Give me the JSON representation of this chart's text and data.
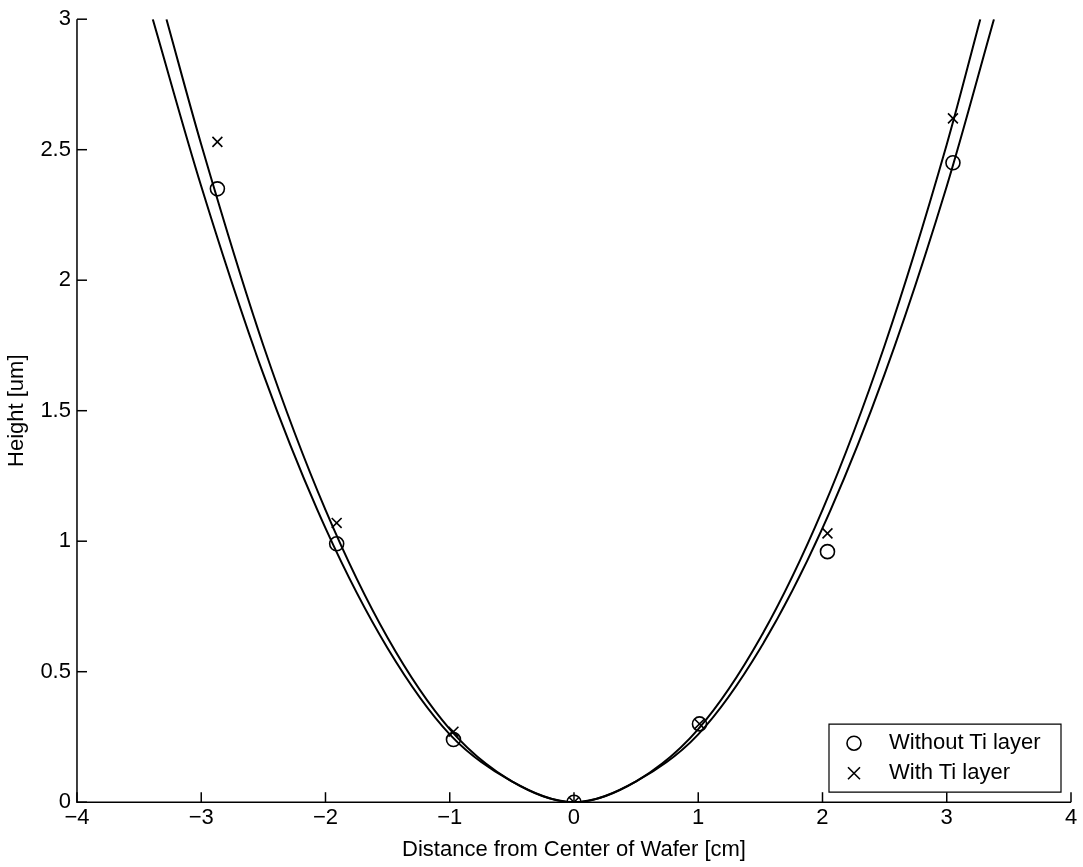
{
  "chart_data": {
    "type": "scatter",
    "xlabel": "Distance from Center of Wafer [cm]",
    "ylabel": "Height [um]",
    "xlim": [
      -4,
      4
    ],
    "ylim": [
      0,
      3
    ],
    "xticks": [
      -4,
      -3,
      -2,
      -1,
      0,
      1,
      2,
      3,
      4
    ],
    "yticks": [
      0,
      0.5,
      1,
      1.5,
      2,
      2.5,
      3
    ],
    "grid": false,
    "legend": "bottom right",
    "series": [
      {
        "name": "Without Ti layer",
        "color": "#000000",
        "marker": "circle",
        "x": [
          -2.87,
          -1.91,
          -0.97,
          0,
          1.01,
          2.04,
          3.05
        ],
        "values": [
          2.35,
          0.99,
          0.24,
          0,
          0.3,
          0.96,
          2.45
        ]
      },
      {
        "name": "With Ti layer",
        "color": "#000000",
        "marker": "cross",
        "x": [
          -2.87,
          -1.91,
          -0.97,
          0,
          1.01,
          2.04,
          3.05
        ],
        "values": [
          2.53,
          1.07,
          0.27,
          0,
          0.3,
          1.03,
          2.62
        ]
      },
      {
        "type": "line",
        "color": "#000000",
        "marker": "none",
        "x": [
          -3.39,
          -3,
          -2.5,
          -2,
          -1.5,
          -1,
          -0.5,
          0,
          0.5,
          1,
          1.5,
          2,
          2.5,
          3,
          3.38
        ],
        "values": [
          3,
          2.36,
          1.64,
          1.05,
          0.59,
          0.26,
          0.08,
          0,
          0.08,
          0.26,
          0.59,
          1.05,
          1.64,
          2.36,
          3
        ]
      },
      {
        "type": "line",
        "color": "#000000",
        "marker": "none",
        "x": [
          -3.28,
          -3,
          -2.5,
          -2,
          -1.5,
          -1,
          -0.5,
          0,
          0.5,
          1,
          1.5,
          2,
          2.5,
          3,
          3.27
        ],
        "values": [
          3,
          2.52,
          1.75,
          1.12,
          0.63,
          0.28,
          0.08,
          0,
          0.08,
          0.28,
          0.63,
          1.12,
          1.75,
          2.52,
          3
        ]
      }
    ]
  }
}
